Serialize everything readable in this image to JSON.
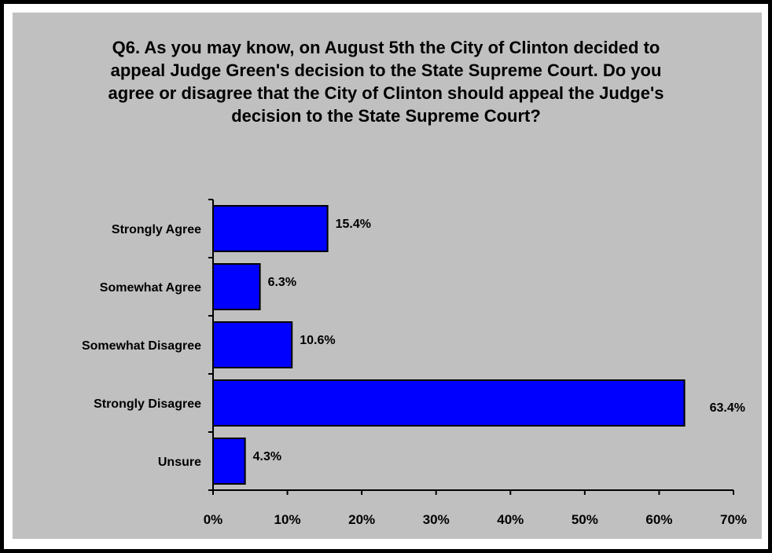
{
  "colors": {
    "bar_fill": "#0000ff",
    "panel_background": "#c0c0c0",
    "axis": "#000000"
  },
  "chart_data": {
    "type": "bar",
    "orientation": "horizontal",
    "title": "Q6.  As you may know, on August 5th the City of Clinton decided to appeal Judge Green's decision to the State Supreme Court.  Do you agree or disagree that the City of Clinton should appeal the Judge's decision to the State Supreme Court?",
    "categories": [
      "Strongly Agree",
      "Somewhat Agree",
      "Somewhat Disagree",
      "Strongly Disagree",
      "Unsure"
    ],
    "values": [
      15.4,
      6.3,
      10.6,
      63.4,
      4.3
    ],
    "value_labels": [
      "15.4%",
      "6.3%",
      "10.6%",
      "63.4%",
      "4.3%"
    ],
    "xlim": [
      0,
      70
    ],
    "xticks": [
      0,
      10,
      20,
      30,
      40,
      50,
      60,
      70
    ],
    "xtick_labels": [
      "0%",
      "10%",
      "20%",
      "30%",
      "40%",
      "50%",
      "60%",
      "70%"
    ],
    "grid": false,
    "legend": "none"
  }
}
